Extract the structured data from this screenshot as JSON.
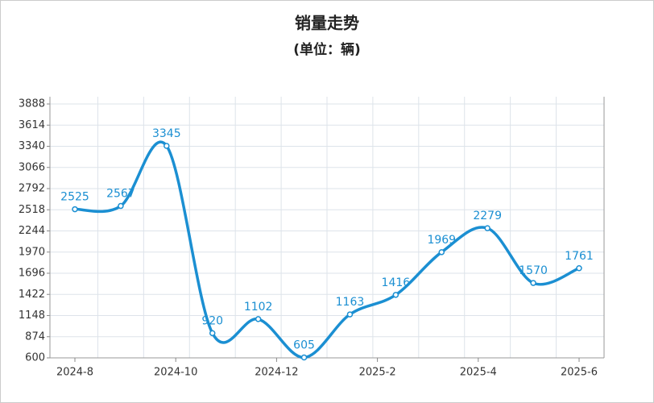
{
  "chart_data": {
    "type": "line",
    "title": "销量走势",
    "subtitle": "(单位：辆)",
    "xticks": [
      "2024-8",
      "2024-10",
      "2024-12",
      "2025-2",
      "2025-4",
      "2025-6"
    ],
    "values": [
      2525,
      2567,
      3345,
      920,
      1102,
      605,
      1163,
      1416,
      1969,
      2279,
      1570,
      1761
    ],
    "color": "#1b8fd2",
    "ylim": [
      600,
      3888
    ],
    "yticks": [
      600,
      874,
      1148,
      1422,
      1696,
      1970,
      2244,
      2518,
      2792,
      3066,
      3340,
      3614,
      3888
    ],
    "grid": true
  }
}
